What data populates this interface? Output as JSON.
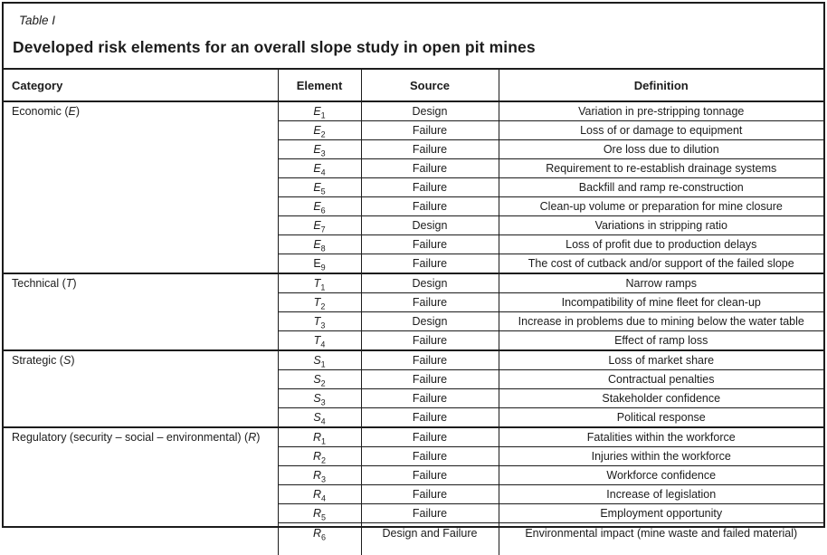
{
  "table": {
    "label": "Table I",
    "title": "Developed risk elements for an overall slope study in open pit mines",
    "columns": [
      "Category",
      "Element",
      "Source",
      "Definition"
    ],
    "sections": [
      {
        "cat_pre": "Economic (",
        "cat_sym": "E",
        "cat_post": ")",
        "rows": [
          {
            "el": "E",
            "sub": "1",
            "source": "Design",
            "definition": "Variation in pre-stripping tonnage"
          },
          {
            "el": "E",
            "sub": "2",
            "source": "Failure",
            "definition": "Loss of or damage to equipment"
          },
          {
            "el": "E",
            "sub": "3",
            "source": "Failure",
            "definition": "Ore loss due to dilution"
          },
          {
            "el": "E",
            "sub": "4",
            "source": "Failure",
            "definition": "Requirement to re-establish drainage systems"
          },
          {
            "el": "E",
            "sub": "5",
            "source": "Failure",
            "definition": "Backfill and ramp re-construction"
          },
          {
            "el": "E",
            "sub": "6",
            "source": "Failure",
            "definition": "Clean-up volume or preparation for mine closure"
          },
          {
            "el": "E",
            "sub": "7",
            "source": "Design",
            "definition": "Variations in stripping ratio"
          },
          {
            "el": "E",
            "sub": "8",
            "source": "Failure",
            "definition": "Loss of profit due to production delays"
          },
          {
            "el": "E",
            "sub": "9",
            "source": "Failure",
            "definition": "The cost of cutback and/or support of the failed slope"
          }
        ]
      },
      {
        "cat_pre": "Technical (",
        "cat_sym": "T",
        "cat_post": ")",
        "rows": [
          {
            "el": "T",
            "sub": "1",
            "source": "Design",
            "definition": "Narrow ramps"
          },
          {
            "el": "T",
            "sub": "2",
            "source": "Failure",
            "definition": "Incompatibility of mine fleet for clean-up"
          },
          {
            "el": "T",
            "sub": "3",
            "source": "Design",
            "definition": "Increase in problems due to mining below the water table"
          },
          {
            "el": "T",
            "sub": "4",
            "source": "Failure",
            "definition": "Effect of ramp loss"
          }
        ]
      },
      {
        "cat_pre": "Strategic (",
        "cat_sym": "S",
        "cat_post": ")",
        "rows": [
          {
            "el": "S",
            "sub": "1",
            "source": "Failure",
            "definition": "Loss of market share"
          },
          {
            "el": "S",
            "sub": "2",
            "source": "Failure",
            "definition": "Contractual penalties"
          },
          {
            "el": "S",
            "sub": "3",
            "source": "Failure",
            "definition": "Stakeholder confidence"
          },
          {
            "el": "S",
            "sub": "4",
            "source": "Failure",
            "definition": "Political response"
          }
        ]
      },
      {
        "cat_pre": "Regulatory (security – social – environmental) (",
        "cat_sym": "R",
        "cat_post": ")",
        "rows": [
          {
            "el": "R",
            "sub": "1",
            "source": "Failure",
            "definition": "Fatalities within the workforce"
          },
          {
            "el": "R",
            "sub": "2",
            "source": "Failure",
            "definition": "Injuries within the workforce"
          },
          {
            "el": "R",
            "sub": "3",
            "source": "Failure",
            "definition": "Workforce confidence"
          },
          {
            "el": "R",
            "sub": "4",
            "source": "Failure",
            "definition": "Increase of legislation"
          },
          {
            "el": "R",
            "sub": "5",
            "source": "Failure",
            "definition": "Employment opportunity"
          },
          {
            "el": "R",
            "sub": "6",
            "source": "Design and Failure",
            "definition": "Environmental impact (mine waste and failed material)"
          }
        ]
      }
    ]
  }
}
